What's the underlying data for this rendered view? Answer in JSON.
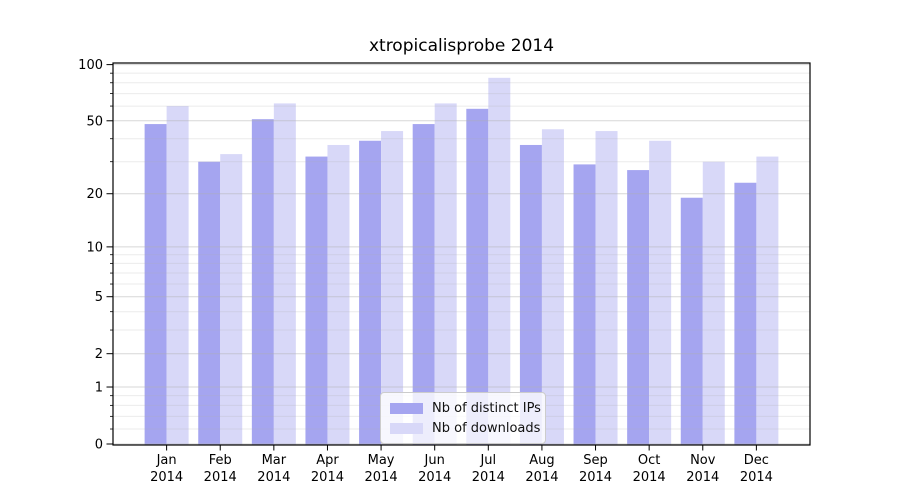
{
  "title": "xtropicalisprobe 2014",
  "chart_data": {
    "type": "bar",
    "title": "xtropicalisprobe 2014",
    "x_tick_labels": [
      [
        "Jan",
        "2014"
      ],
      [
        "Feb",
        "2014"
      ],
      [
        "Mar",
        "2014"
      ],
      [
        "Apr",
        "2014"
      ],
      [
        "May",
        "2014"
      ],
      [
        "Jun",
        "2014"
      ],
      [
        "Jul",
        "2014"
      ],
      [
        "Aug",
        "2014"
      ],
      [
        "Sep",
        "2014"
      ],
      [
        "Oct",
        "2014"
      ],
      [
        "Nov",
        "2014"
      ],
      [
        "Dec",
        "2014"
      ]
    ],
    "series": [
      {
        "name": "Nb of distinct IPs",
        "color": "#a5a5f0",
        "values": [
          48,
          30,
          51,
          32,
          39,
          48,
          58,
          37,
          29,
          27,
          19,
          23
        ]
      },
      {
        "name": "Nb of downloads",
        "color": "#d8d8f8",
        "values": [
          60,
          33,
          62,
          37,
          44,
          62,
          85,
          45,
          44,
          39,
          30,
          32
        ]
      }
    ],
    "y_scale": "log10(value+1)",
    "y_ticks": [
      0,
      1,
      2,
      5,
      10,
      20,
      50,
      100
    ],
    "y_minor_ticks": [
      0.2,
      0.4,
      0.6,
      0.8,
      3,
      4,
      6,
      7,
      8,
      9,
      30,
      40,
      60,
      70,
      80,
      90
    ],
    "ylim": [
      0,
      102
    ],
    "grid": "major+minor horizontal",
    "legend_position": "bottom-center-inside"
  }
}
